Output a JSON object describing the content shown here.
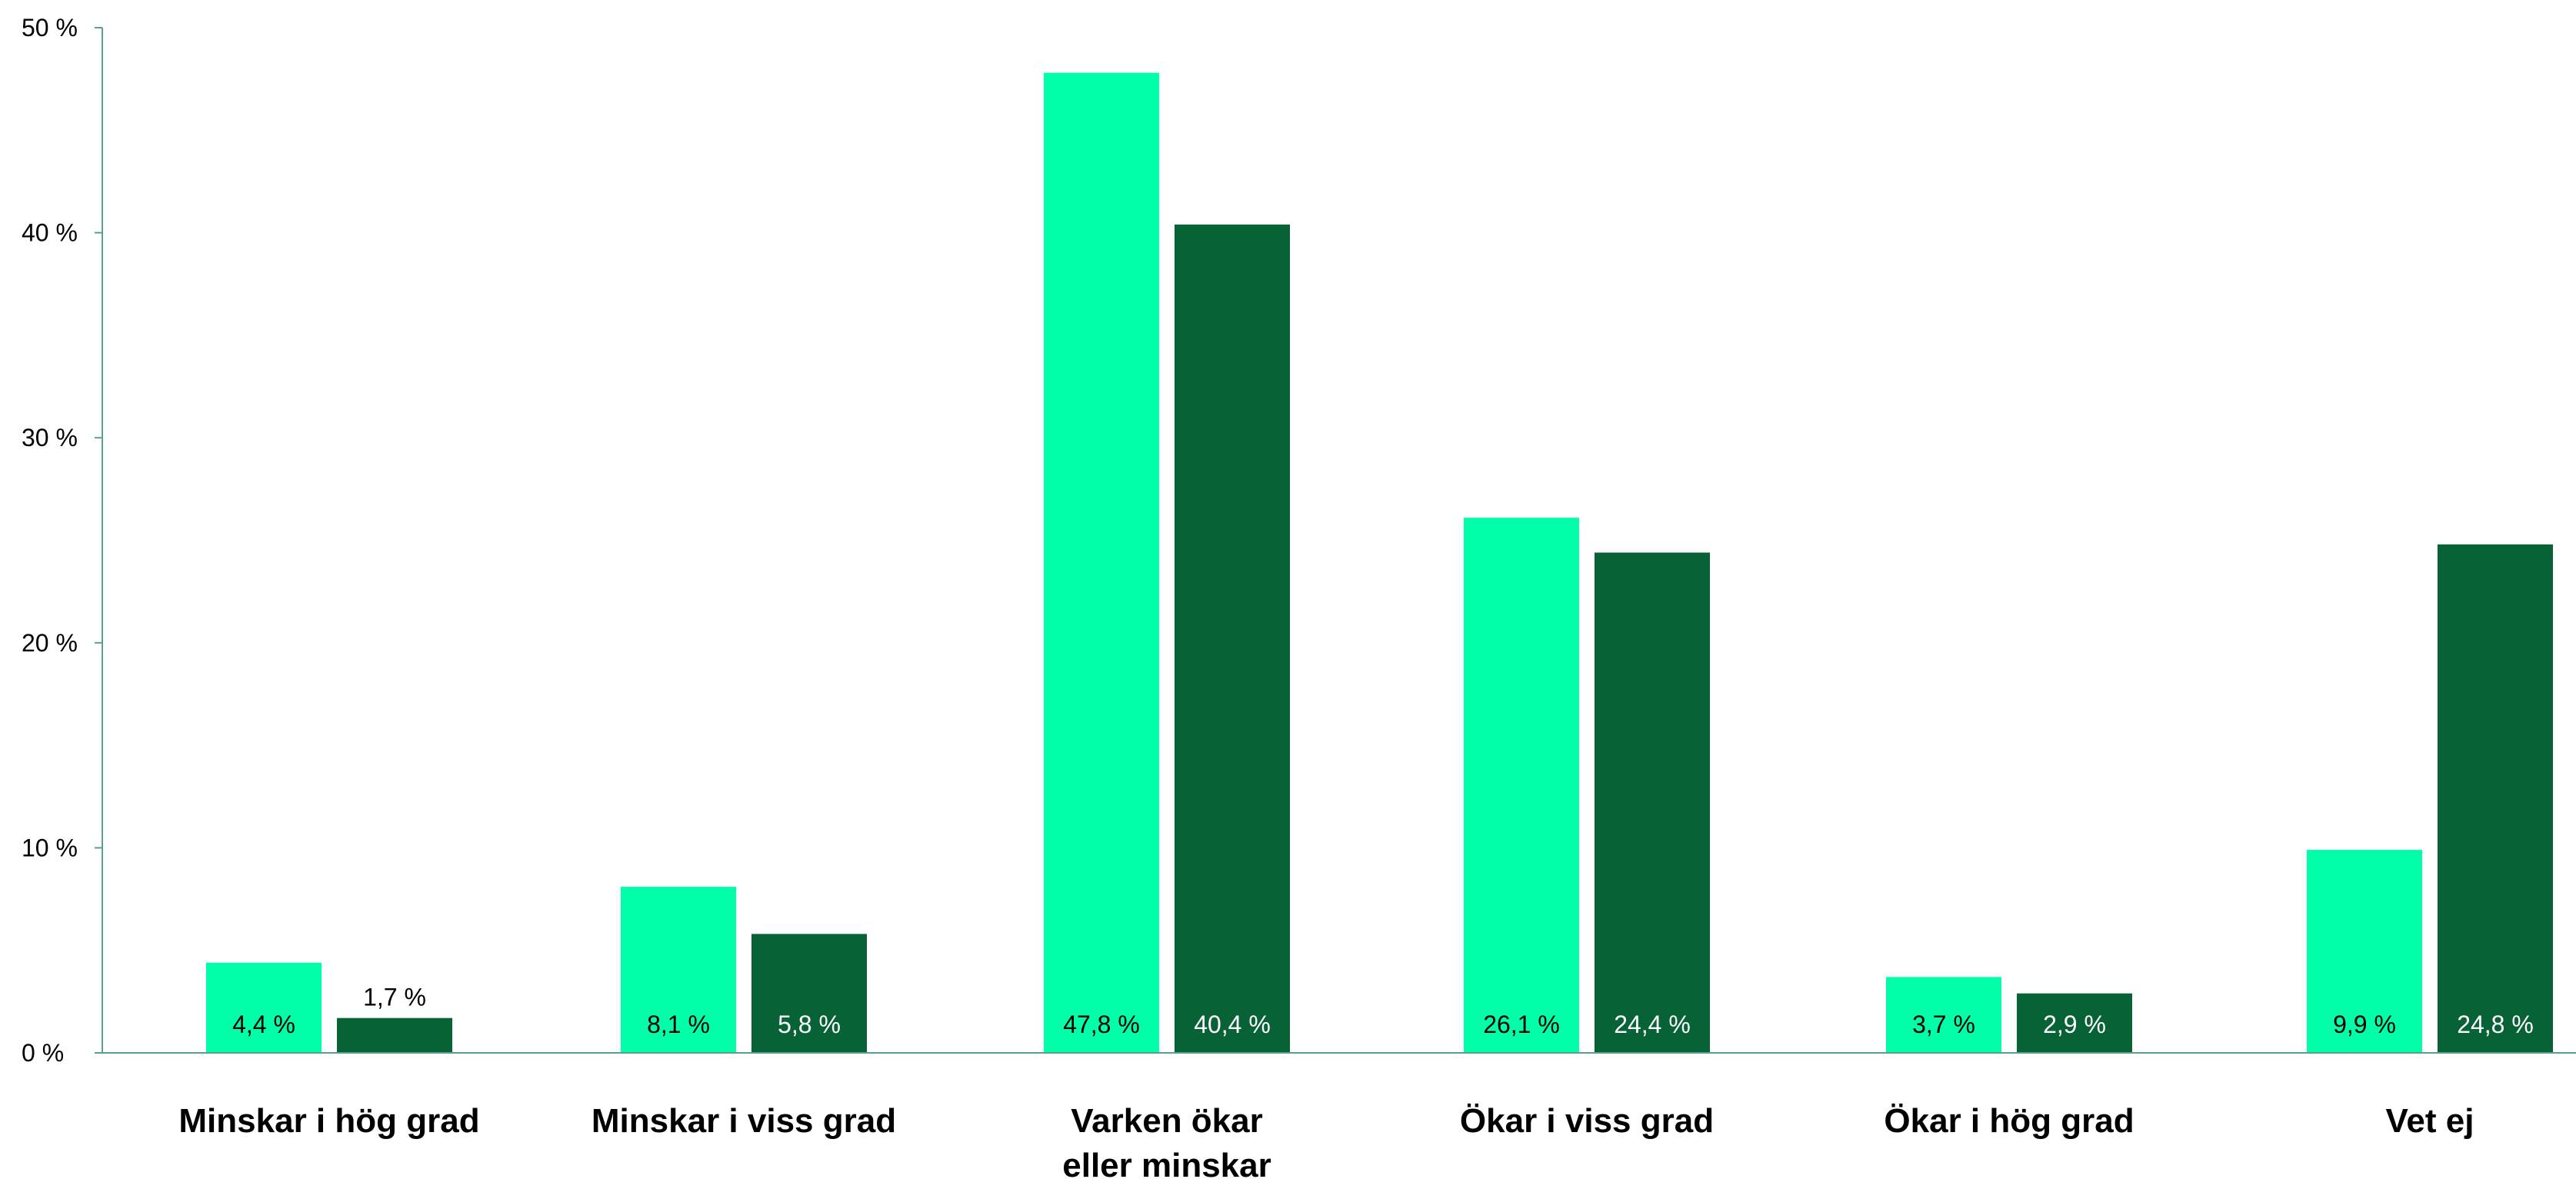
{
  "chart_data": {
    "type": "bar",
    "categories": [
      [
        "Minskar i hög grad"
      ],
      [
        "Minskar i viss grad"
      ],
      [
        "Varken ökar",
        "eller minskar"
      ],
      [
        "Ökar i viss grad"
      ],
      [
        "Ökar i hög grad"
      ],
      [
        "Vet ej"
      ]
    ],
    "series": [
      {
        "color": "#00FFA8",
        "values": [
          4.4,
          8.1,
          47.8,
          26.1,
          3.7,
          9.9
        ],
        "labels": [
          "4,4 %",
          "8,1 %",
          "47,8 %",
          "26,1 %",
          "3,7 %",
          "9,9 %"
        ]
      },
      {
        "color": "#076336",
        "values": [
          1.7,
          5.8,
          40.4,
          24.4,
          2.9,
          24.8
        ],
        "labels": [
          "1,7 %",
          "5,8 %",
          "40,4 %",
          "24,4 %",
          "2,9 %",
          "24,8 %"
        ]
      }
    ],
    "yticks": [
      0,
      10,
      20,
      30,
      40,
      50
    ],
    "ytick_labels": [
      "0 %",
      "10 %",
      "20 %",
      "30 %",
      "40 %",
      "50 %"
    ],
    "ylim": [
      0,
      50
    ],
    "grid": false,
    "axis_color": "#5aa087",
    "title": "",
    "xlabel": "",
    "ylabel": ""
  }
}
